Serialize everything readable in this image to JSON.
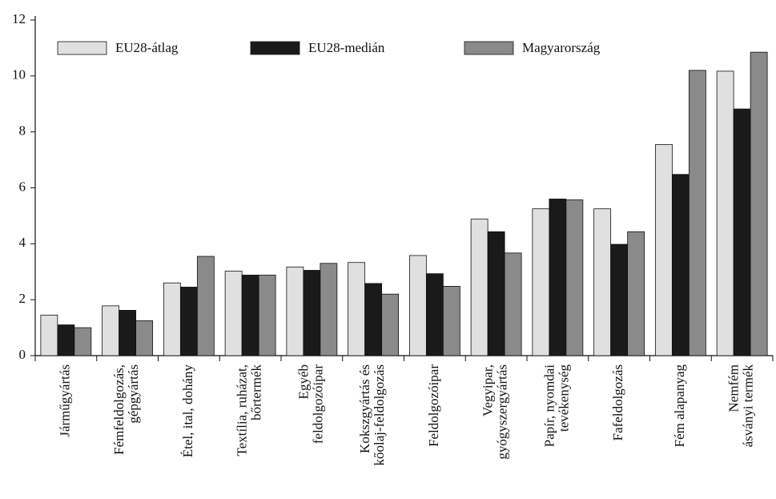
{
  "chart_data": {
    "type": "bar",
    "categories": [
      [
        "Járműgyártás"
      ],
      [
        "Fémfeldolgozás,",
        "gépgyártás"
      ],
      [
        "Étel, ital, dohány"
      ],
      [
        "Textília, ruházat,",
        "bőrtermék"
      ],
      [
        "Egyéb",
        "feldolgozóipar"
      ],
      [
        "Kokszgyártás és",
        "kőolaj-feldolgozás"
      ],
      [
        "Feldolgozóipar"
      ],
      [
        "Vegyipar,",
        "gyógyszergyártás"
      ],
      [
        "Papír, nyomdai",
        "tevékenység"
      ],
      [
        "Fafeldolgozás"
      ],
      [
        "Fém alapanyag"
      ],
      [
        "Nemfém",
        "ásványi termék"
      ]
    ],
    "series": [
      {
        "name": "EU28-átlag",
        "color": "#e0e0e0",
        "values": [
          1.45,
          1.78,
          2.6,
          3.02,
          3.17,
          3.33,
          3.58,
          4.88,
          5.25,
          5.25,
          7.55,
          10.17
        ]
      },
      {
        "name": "EU28-medián",
        "color": "#1a1a1a",
        "values": [
          1.1,
          1.62,
          2.45,
          2.88,
          3.05,
          2.58,
          2.93,
          4.43,
          5.6,
          3.98,
          6.48,
          8.82
        ]
      },
      {
        "name": "Magyarország",
        "color": "#8a8a8a",
        "values": [
          1.0,
          1.25,
          3.55,
          2.88,
          3.3,
          2.2,
          2.48,
          3.67,
          5.57,
          4.43,
          10.2,
          10.85
        ]
      }
    ],
    "ylim": [
      0,
      12
    ],
    "yticks": [
      0,
      2,
      4,
      6,
      8,
      10,
      12
    ],
    "grid": false,
    "legend": "top"
  }
}
